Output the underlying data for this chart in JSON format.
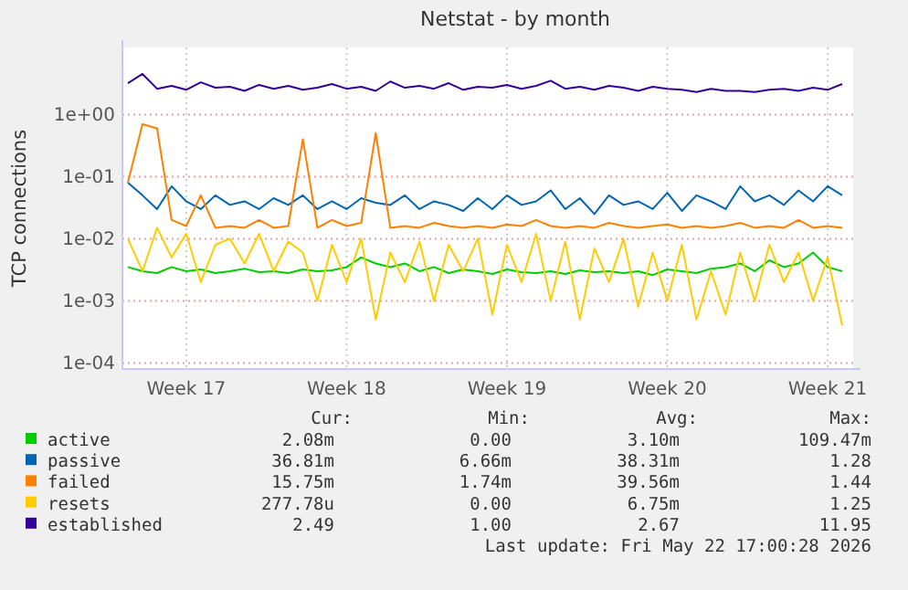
{
  "chart_data": {
    "type": "line",
    "title": "Netstat - by month",
    "ylabel": "TCP connections",
    "log": "y",
    "grid": true,
    "legend": "bottom",
    "marker": "none",
    "line_style": "solid",
    "categories": [
      null,
      null,
      null,
      null,
      "Week 17",
      null,
      null,
      null,
      null,
      null,
      null,
      null,
      null,
      null,
      null,
      "Week 18",
      null,
      null,
      null,
      null,
      null,
      null,
      null,
      null,
      null,
      null,
      "Week 19",
      null,
      null,
      null,
      null,
      null,
      null,
      null,
      null,
      null,
      null,
      "Week 20",
      null,
      null,
      null,
      null,
      null,
      null,
      null,
      null,
      null,
      null,
      "Week 21",
      null
    ],
    "ylim": [
      8e-05,
      12
    ],
    "yticks": [
      {
        "value": 0.0001,
        "label": "1e-04"
      },
      {
        "value": 0.001,
        "label": "1e-03"
      },
      {
        "value": 0.01,
        "label": "1e-02"
      },
      {
        "value": 0.1,
        "label": "1e-01"
      },
      {
        "value": 1,
        "label": "1e+00"
      }
    ],
    "series": [
      {
        "name": "active",
        "color": "#00cc00",
        "values": [
          0.0035,
          0.003,
          0.0028,
          0.0035,
          0.003,
          0.0032,
          0.0028,
          0.003,
          0.0033,
          0.0029,
          0.003,
          0.0028,
          0.0032,
          0.003,
          0.0031,
          0.0035,
          0.005,
          0.004,
          0.0035,
          0.004,
          0.003,
          0.0035,
          0.0028,
          0.0032,
          0.003,
          0.0027,
          0.0032,
          0.0029,
          0.0028,
          0.003,
          0.0027,
          0.0031,
          0.0029,
          0.003,
          0.0028,
          0.003,
          0.0026,
          0.0032,
          0.003,
          0.0028,
          0.0033,
          0.0035,
          0.004,
          0.003,
          0.0045,
          0.0035,
          0.004,
          0.006,
          0.0035,
          0.003
        ]
      },
      {
        "name": "passive",
        "color": "#0066b3",
        "values": [
          0.08,
          0.05,
          0.03,
          0.07,
          0.04,
          0.03,
          0.05,
          0.035,
          0.04,
          0.03,
          0.045,
          0.035,
          0.05,
          0.03,
          0.04,
          0.03,
          0.045,
          0.038,
          0.035,
          0.05,
          0.03,
          0.04,
          0.035,
          0.028,
          0.045,
          0.03,
          0.05,
          0.035,
          0.04,
          0.06,
          0.03,
          0.045,
          0.025,
          0.05,
          0.035,
          0.04,
          0.03,
          0.055,
          0.028,
          0.05,
          0.04,
          0.03,
          0.07,
          0.04,
          0.05,
          0.035,
          0.06,
          0.04,
          0.07,
          0.05
        ]
      },
      {
        "name": "failed",
        "color": "#ff8000",
        "values": [
          0.08,
          0.7,
          0.6,
          0.02,
          0.016,
          0.05,
          0.015,
          0.016,
          0.015,
          0.02,
          0.015,
          0.016,
          0.4,
          0.015,
          0.02,
          0.016,
          0.018,
          0.5,
          0.015,
          0.016,
          0.015,
          0.018,
          0.016,
          0.015,
          0.016,
          0.015,
          0.017,
          0.016,
          0.02,
          0.016,
          0.015,
          0.016,
          0.015,
          0.018,
          0.016,
          0.015,
          0.016,
          0.017,
          0.015,
          0.016,
          0.015,
          0.016,
          0.018,
          0.015,
          0.016,
          0.015,
          0.02,
          0.015,
          0.016,
          0.015
        ]
      },
      {
        "name": "resets",
        "color": "#ffcc00",
        "values": [
          0.01,
          0.003,
          0.015,
          0.005,
          0.012,
          0.002,
          0.008,
          0.01,
          0.004,
          0.012,
          0.003,
          0.009,
          0.006,
          0.001,
          0.008,
          0.002,
          0.01,
          0.0005,
          0.006,
          0.002,
          0.009,
          0.001,
          0.008,
          0.003,
          0.01,
          0.0006,
          0.008,
          0.002,
          0.012,
          0.001,
          0.009,
          0.0005,
          0.007,
          0.002,
          0.01,
          0.0008,
          0.006,
          0.001,
          0.008,
          0.0005,
          0.003,
          0.0006,
          0.006,
          0.001,
          0.008,
          0.002,
          0.006,
          0.001,
          0.005,
          0.0004
        ]
      },
      {
        "name": "established",
        "color": "#330099",
        "values": [
          3.2,
          4.5,
          2.6,
          2.9,
          2.5,
          3.3,
          2.7,
          2.8,
          2.4,
          3.0,
          2.6,
          2.9,
          2.5,
          2.7,
          3.1,
          2.6,
          2.8,
          2.4,
          3.4,
          2.7,
          2.9,
          2.6,
          3.2,
          2.5,
          2.8,
          2.7,
          3.0,
          2.6,
          2.9,
          3.5,
          2.6,
          2.8,
          2.5,
          2.9,
          2.7,
          2.4,
          2.8,
          2.6,
          2.5,
          2.3,
          2.6,
          2.4,
          2.4,
          2.3,
          2.5,
          2.6,
          2.4,
          2.7,
          2.5,
          3.1
        ]
      }
    ],
    "annotations": [
      "Cur:",
      "Min:",
      "Avg:",
      "Max:",
      "2.08m",
      "0.00",
      "3.10m",
      "109.47m",
      "36.81m",
      "6.66m",
      "38.31m",
      "1.28",
      "15.75m",
      "1.74m",
      "39.56m",
      "1.44",
      "277.78u",
      "0.00",
      "6.75m",
      "1.25",
      "2.49",
      "1.00",
      "2.67",
      "11.95",
      "Last update: Fri May 22 17:00:28 2026"
    ]
  }
}
